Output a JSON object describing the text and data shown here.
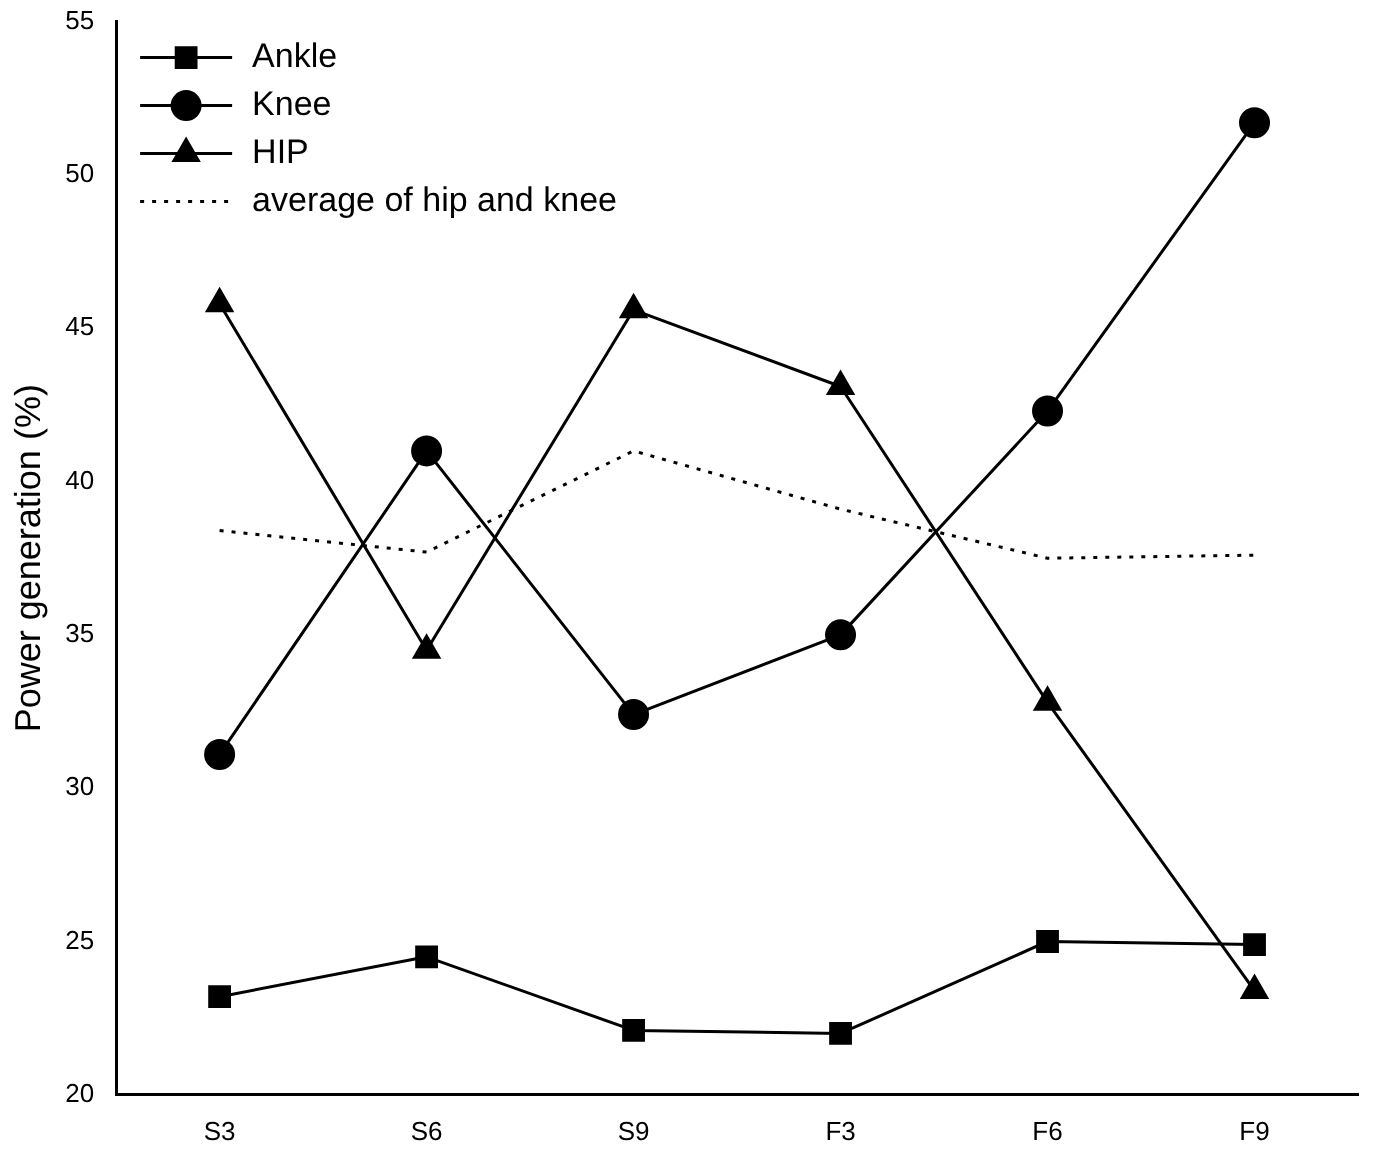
{
  "chart_data": {
    "type": "line",
    "ylabel": "Power generation (%)",
    "categories": [
      "S3",
      "S6",
      "S9",
      "F3",
      "F6",
      "F9"
    ],
    "series": [
      {
        "name": "Ankle",
        "color": "#000000",
        "marker": "square",
        "line_style": "solid",
        "values": [
          23.2,
          24.5,
          22.1,
          22.0,
          25.0,
          24.9
        ]
      },
      {
        "name": "Knee",
        "color": "#000000",
        "marker": "circle",
        "line_style": "solid",
        "values": [
          31.1,
          41.0,
          32.4,
          35.0,
          42.3,
          51.7
        ]
      },
      {
        "name": "HIP",
        "color": "#000000",
        "marker": "triangle",
        "line_style": "solid",
        "values": [
          45.8,
          34.5,
          45.6,
          43.1,
          32.8,
          23.4
        ]
      },
      {
        "name": "average of hip and knee",
        "color": "#000000",
        "marker": "none",
        "line_style": "dotted",
        "values": [
          38.4,
          37.7,
          41.0,
          39.1,
          37.5,
          37.6
        ]
      }
    ],
    "ylim": [
      20,
      55
    ],
    "yticks": [
      20,
      25,
      30,
      35,
      40,
      45,
      50,
      55
    ],
    "grid": false,
    "legend": "top left"
  }
}
